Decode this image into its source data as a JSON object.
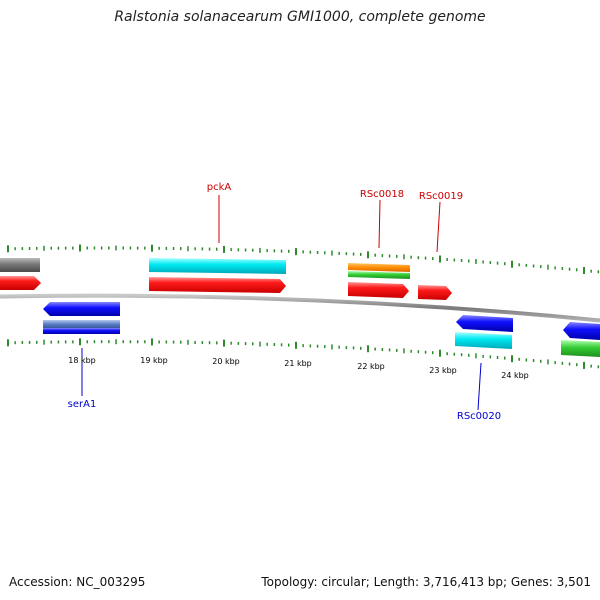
{
  "header": {
    "title": "Ralstonia solanacearum GMI1000, complete genome"
  },
  "footer": {
    "accession": "Accession: NC_003295",
    "summary": "Topology: circular; Length: 3,716,413 bp; Genes: 3,501"
  },
  "colors": {
    "backbone": "#888888",
    "ticks": "#2e8b2e",
    "forward_label": "#cc0000",
    "reverse_label": "#0000cc",
    "gene_red": "#ff0000",
    "gene_cyan": "#00e5ee",
    "gene_blue": "#0000ee",
    "gene_orange": "#ff8c00",
    "gene_green": "#33cc33",
    "gene_gray": "#777777",
    "gene_steelblue": "#5b7fc6"
  },
  "chart_data": {
    "type": "genome_map",
    "unit": "kbp",
    "scale_labels": [
      "18 kbp",
      "19 kbp",
      "20 kbp",
      "21 kbp",
      "22 kbp",
      "23 kbp",
      "24 kbp"
    ],
    "labeled_genes": [
      {
        "name": "pckA",
        "strand": "+"
      },
      {
        "name": "RSc0018",
        "strand": "+"
      },
      {
        "name": "RSc0019",
        "strand": "+"
      },
      {
        "name": "serA1",
        "strand": "-"
      },
      {
        "name": "RSc0020",
        "strand": "-"
      }
    ]
  }
}
